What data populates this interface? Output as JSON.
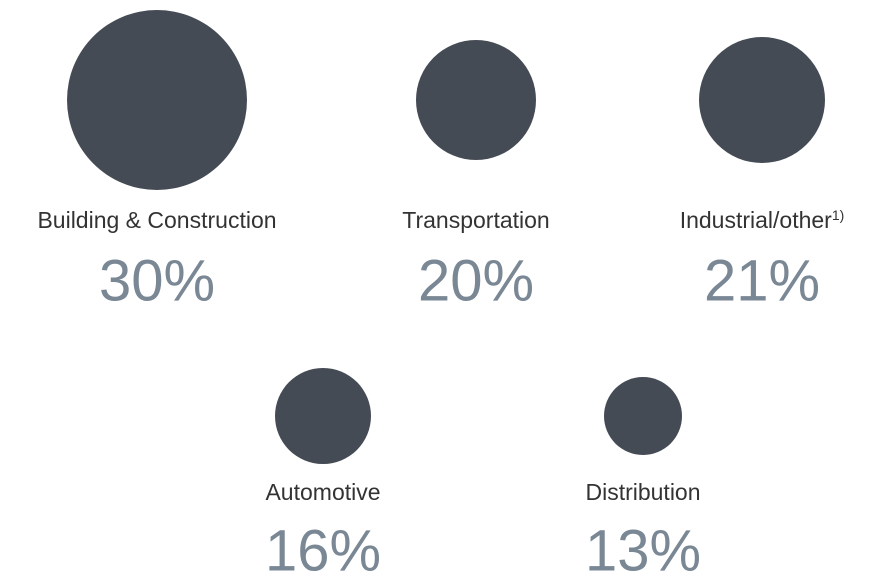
{
  "chart_data": {
    "type": "bubble",
    "categories": [
      "Building & Construction",
      "Transportation",
      "Industrial/other",
      "Automotive",
      "Distribution"
    ],
    "category_footnotes": [
      null,
      null,
      "1)",
      null,
      null
    ],
    "values": [
      30,
      20,
      21,
      16,
      13
    ],
    "value_labels": [
      "30%",
      "20%",
      "21%",
      "16%",
      "13%"
    ],
    "color": "#454b55"
  }
}
